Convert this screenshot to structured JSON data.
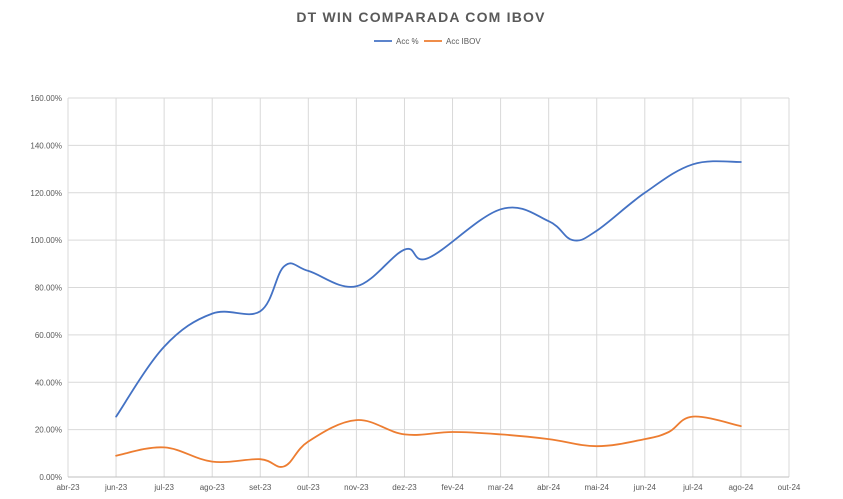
{
  "chart_data": {
    "type": "line",
    "title": "DT WIN COMPARADA COM IBOV",
    "xlabel": "",
    "ylabel": "",
    "x_ticks": [
      "abr-23",
      "jun-23",
      "jul-23",
      "ago-23",
      "set-23",
      "out-23",
      "nov-23",
      "dez-23",
      "fev-24",
      "mar-24",
      "abr-24",
      "mai-24",
      "jun-24",
      "jul-24",
      "ago-24",
      "out-24"
    ],
    "y_ticks": [
      "0.00%",
      "20.00%",
      "40.00%",
      "60.00%",
      "80.00%",
      "100.00%",
      "120.00%",
      "140.00%",
      "160.00%"
    ],
    "ylim": [
      0,
      160
    ],
    "grid": true,
    "legend_position": "top",
    "series": [
      {
        "name": "Acc %",
        "color": "#4472c4",
        "points": [
          {
            "x": "jun-23",
            "y": 25.5
          },
          {
            "x": "jul-23",
            "y": 55
          },
          {
            "x": "ago-23",
            "y": 69
          },
          {
            "x": "set-23",
            "y": 70
          },
          {
            "x": "set-23/out-23",
            "y": 89
          },
          {
            "x": "out-23",
            "y": 87
          },
          {
            "x": "nov-23",
            "y": 80.5
          },
          {
            "x": "dez-23",
            "y": 96
          },
          {
            "x": "dez-23/fev-24",
            "y": 92.5
          },
          {
            "x": "mar-24",
            "y": 113
          },
          {
            "x": "abr-24",
            "y": 108
          },
          {
            "x": "abr-24/mai-24",
            "y": 100
          },
          {
            "x": "mai-24",
            "y": 104
          },
          {
            "x": "jun-24",
            "y": 120
          },
          {
            "x": "jul-24",
            "y": 132
          },
          {
            "x": "ago-24",
            "y": 133
          }
        ]
      },
      {
        "name": "Acc IBOV",
        "color": "#ed7d31",
        "points": [
          {
            "x": "jun-23",
            "y": 9
          },
          {
            "x": "jul-23",
            "y": 12.5
          },
          {
            "x": "ago-23",
            "y": 6.5
          },
          {
            "x": "set-23",
            "y": 7.5
          },
          {
            "x": "set-23/out-23",
            "y": 4.5
          },
          {
            "x": "out-23",
            "y": 15
          },
          {
            "x": "nov-23",
            "y": 24
          },
          {
            "x": "dez-23",
            "y": 18
          },
          {
            "x": "fev-24",
            "y": 19
          },
          {
            "x": "mar-24",
            "y": 18
          },
          {
            "x": "abr-24",
            "y": 16
          },
          {
            "x": "mai-24",
            "y": 13
          },
          {
            "x": "jun-24",
            "y": 16
          },
          {
            "x": "jun-24/jul-24",
            "y": 19
          },
          {
            "x": "jul-24",
            "y": 25.5
          },
          {
            "x": "ago-24",
            "y": 21.5
          }
        ]
      }
    ]
  }
}
